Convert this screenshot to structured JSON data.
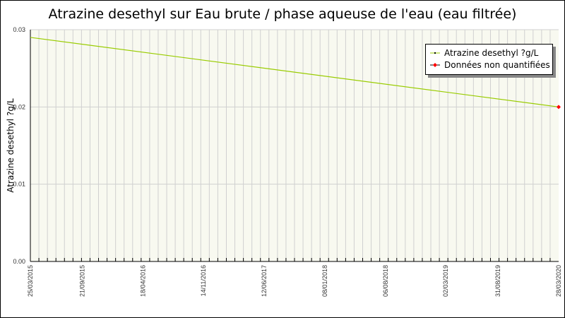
{
  "chart_data": {
    "type": "line",
    "title": "Atrazine desethyl sur Eau brute / phase aqueuse de l'eau (eau filtrée)",
    "ylabel": "Atrazine desethyl ?g/L",
    "xlabel": "",
    "ylim": [
      0,
      0.03
    ],
    "yticks": [
      "0.00",
      "0.01",
      "0.02",
      "0.03"
    ],
    "xlim": [
      "25/03/2015",
      "28/03/2020"
    ],
    "xticks": [
      "25/03/2015",
      "21/09/2015",
      "18/04/2016",
      "14/11/2016",
      "12/06/2017",
      "08/01/2018",
      "06/08/2018",
      "02/03/2019",
      "31/08/2019",
      "28/03/2020"
    ],
    "grid": true,
    "legend_position": "top-right",
    "series": [
      {
        "name": "Atrazine desethyl ?g/L",
        "color": "#99cc00",
        "x": [
          "25/03/2015",
          "28/03/2020"
        ],
        "y": [
          0.029,
          0.02
        ]
      },
      {
        "name": "Données non quantifiées",
        "color": "#ff0000",
        "x": [
          "28/03/2020"
        ],
        "y": [
          0.02
        ]
      }
    ],
    "plot_background": "#f8f9f0"
  }
}
